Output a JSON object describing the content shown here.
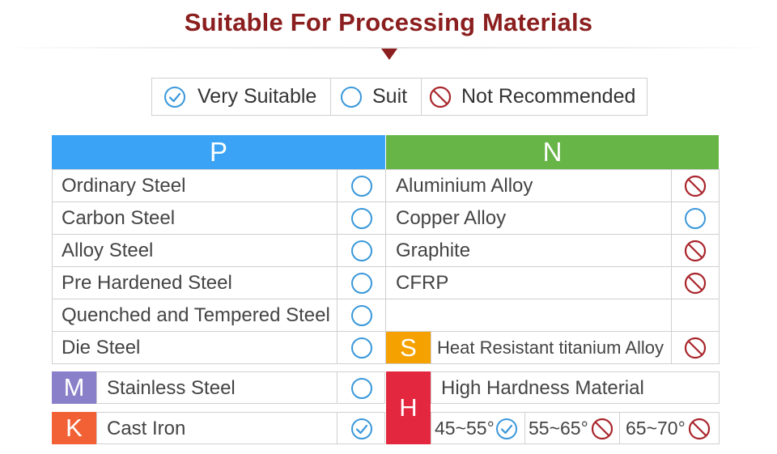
{
  "title": "Suitable For Processing Materials",
  "legend": {
    "very_suitable": "Very Suitable",
    "suit": "Suit",
    "not_recommended": "Not Recommended"
  },
  "colors": {
    "title": "#8b1e1e",
    "p_header": "#3aa3f5",
    "n_header": "#67b447",
    "m_badge": "#8a7fc9",
    "k_badge": "#f26135",
    "s_badge": "#f5a200",
    "h_badge": "#e3273f",
    "suit_icon": "#3a98da",
    "not_icon": "#a9252b"
  },
  "table": {
    "p_header": "P",
    "n_header": "N",
    "p_rows": [
      {
        "name": "Ordinary Steel",
        "rating": "suit"
      },
      {
        "name": "Carbon Steel",
        "rating": "suit"
      },
      {
        "name": "Alloy Steel",
        "rating": "suit"
      },
      {
        "name": "Pre Hardened Steel",
        "rating": "suit"
      },
      {
        "name": "Quenched and Tempered Steel",
        "rating": "suit"
      },
      {
        "name": "Die Steel",
        "rating": "suit"
      }
    ],
    "n_rows": [
      {
        "name": "Aluminium Alloy",
        "rating": "not-recommended"
      },
      {
        "name": "Copper Alloy",
        "rating": "suit"
      },
      {
        "name": "Graphite",
        "rating": "not-recommended"
      },
      {
        "name": "CFRP",
        "rating": "not-recommended"
      }
    ],
    "s": {
      "letter": "S",
      "name": "Heat Resistant titanium Alloy",
      "rating": "not-recommended"
    },
    "m": {
      "letter": "M",
      "name": "Stainless Steel",
      "rating": "suit"
    },
    "k": {
      "letter": "K",
      "name": "Cast Iron",
      "rating": "very-suitable"
    },
    "h": {
      "letter": "H",
      "name": "High Hardness Material",
      "ranges": [
        {
          "label": "45~55°",
          "rating": "very-suitable"
        },
        {
          "label": "55~65°",
          "rating": "not-recommended"
        },
        {
          "label": "65~70°",
          "rating": "not-recommended"
        }
      ]
    }
  }
}
